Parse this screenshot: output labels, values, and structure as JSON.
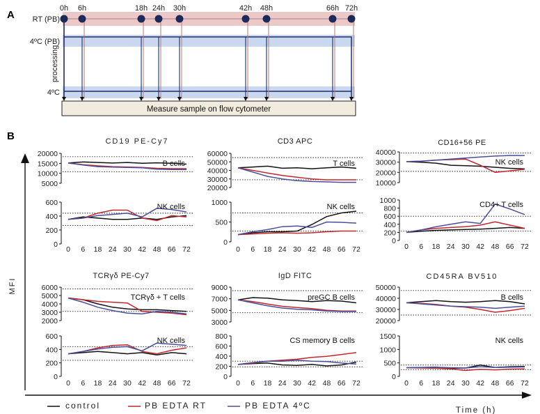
{
  "panel_labels": {
    "a": "A",
    "b": "B"
  },
  "timeline": {
    "tracks": [
      {
        "label": "RT (PB)",
        "fill": "#ecc9c9"
      },
      {
        "label": "4ºC (PB)",
        "fill": "#c9d8ee"
      },
      {
        "label": "4ºC",
        "fill": "#c9d8ee"
      }
    ],
    "processing_label": "processing",
    "time_points": [
      "0h",
      "6h",
      "18h",
      "24h",
      "30h",
      "42h",
      "48h",
      "66h",
      "72h"
    ],
    "measure_label": "Measure sample on flow cytometer",
    "dot_color": "#1c2a5a"
  },
  "axes_titles": {
    "y": "MFI",
    "x": "Time (h)"
  },
  "legend": [
    {
      "label": "control",
      "color": "#111111"
    },
    {
      "label": "PB EDTA RT",
      "color": "#c0282d"
    },
    {
      "label": "PB EDTA 4ºC",
      "color": "#4a4e9a"
    }
  ],
  "chart_data": [
    {
      "type": "line",
      "title": "CD19 PE-Cy7",
      "x": [
        0,
        6,
        18,
        24,
        30,
        42,
        48,
        66,
        72
      ],
      "top": {
        "yticks": [
          "20000",
          "15000",
          "10000",
          "5000"
        ],
        "ylim": [
          3000,
          21000
        ],
        "label": "B cells",
        "refs": [
          19000,
          10000
        ],
        "series": [
          {
            "name": "control",
            "color": "#111111",
            "values": [
              15200,
              15800,
              15500,
              15200,
              15500,
              15000,
              15300,
              15000,
              14500
            ]
          },
          {
            "name": "PB EDTA RT",
            "color": "#c0282d",
            "values": [
              15200,
              14200,
              13500,
              13000,
              12800,
              12500,
              12000,
              11800,
              11800
            ]
          },
          {
            "name": "PB EDTA 4ºC",
            "color": "#4a4e9a",
            "values": [
              15200,
              14000,
              13000,
              12700,
              12500,
              12300,
              11500,
              11300,
              11200
            ]
          }
        ]
      },
      "bottom": {
        "yticks": [
          "600",
          "400",
          "200",
          "0"
        ],
        "ylim": [
          0,
          680
        ],
        "label": "NK cells",
        "refs": [
          500,
          300
        ],
        "series": [
          {
            "name": "control",
            "color": "#111111",
            "values": [
              400,
              440,
              420,
              400,
              400,
              420,
              400,
              440,
              460
            ]
          },
          {
            "name": "PB EDTA RT",
            "color": "#c0282d",
            "values": [
              400,
              420,
              500,
              550,
              550,
              420,
              380,
              460,
              440
            ]
          },
          {
            "name": "PB EDTA 4ºC",
            "color": "#4a4e9a",
            "values": [
              400,
              420,
              460,
              480,
              500,
              440,
              580,
              560,
              520
            ]
          }
        ]
      }
    },
    {
      "type": "line",
      "title": "CD3 APC",
      "x": [
        0,
        6,
        18,
        24,
        30,
        42,
        48,
        66,
        72
      ],
      "top": {
        "yticks": [
          "60000",
          "50000",
          "40000",
          "30000",
          "20000"
        ],
        "ylim": [
          20000,
          60000
        ],
        "label": "T cells",
        "refs": [
          55000,
          29000
        ],
        "series": [
          {
            "name": "control",
            "color": "#111111",
            "values": [
              43000,
              44000,
              45000,
              42500,
              43000,
              42000,
              43000,
              44000,
              42500
            ]
          },
          {
            "name": "PB EDTA RT",
            "color": "#c0282d",
            "values": [
              43000,
              40000,
              37000,
              34000,
              32000,
              30000,
              29000,
              29000,
              29000
            ]
          },
          {
            "name": "PB EDTA 4ºC",
            "color": "#4a4e9a",
            "values": [
              43000,
              38000,
              33000,
              30000,
              28000,
              27000,
              26500,
              26000,
              26000
            ]
          }
        ]
      },
      "bottom": {
        "yticks": [
          "1000",
          "500",
          "0"
        ],
        "ylim": [
          0,
          1100
        ],
        "label": "NK cells",
        "refs": [
          800,
          300
        ],
        "series": [
          {
            "name": "control",
            "color": "#111111",
            "values": [
              200,
              250,
              280,
              280,
              300,
              480,
              700,
              800,
              850
            ]
          },
          {
            "name": "PB EDTA RT",
            "color": "#c0282d",
            "values": [
              200,
              220,
              240,
              250,
              240,
              250,
              280,
              300,
              300
            ]
          },
          {
            "name": "PB EDTA 4ºC",
            "color": "#4a4e9a",
            "values": [
              200,
              280,
              340,
              420,
              440,
              400,
              550,
              540,
              520
            ]
          }
        ]
      }
    },
    {
      "type": "line",
      "title": "CD16+56 PE",
      "x": [
        0,
        6,
        18,
        24,
        30,
        42,
        48,
        66,
        72
      ],
      "top": {
        "yticks": [
          "40000",
          "30000",
          "20000",
          "10000"
        ],
        "ylim": [
          10000,
          40000
        ],
        "label": "NK cells",
        "refs": [
          39000,
          21000
        ],
        "series": [
          {
            "name": "control",
            "color": "#111111",
            "values": [
              30500,
              30000,
              29000,
              27000,
              26500,
              26000,
              25000,
              24000,
              23500
            ]
          },
          {
            "name": "PB EDTA RT",
            "color": "#c0282d",
            "values": [
              30500,
              31000,
              32000,
              32500,
              33000,
              27000,
              20000,
              21500,
              23000
            ]
          },
          {
            "name": "PB EDTA 4ºC",
            "color": "#4a4e9a",
            "values": [
              30500,
              31000,
              32000,
              33000,
              34000,
              35000,
              36000,
              36500,
              36500
            ]
          }
        ]
      },
      "bottom": {
        "yticks": [
          "1000",
          "800",
          "600",
          "400",
          "200",
          "0"
        ],
        "ylim": [
          0,
          1000
        ],
        "label": "CD4+ T cells",
        "refs": [
          600,
          230
        ],
        "series": [
          {
            "name": "control",
            "color": "#111111",
            "values": [
              200,
              230,
              250,
              260,
              270,
              280,
              300,
              320,
              300
            ]
          },
          {
            "name": "PB EDTA RT",
            "color": "#c0282d",
            "values": [
              200,
              260,
              300,
              320,
              340,
              380,
              460,
              380,
              300
            ]
          },
          {
            "name": "PB EDTA 4ºC",
            "color": "#4a4e9a",
            "values": [
              200,
              260,
              340,
              400,
              460,
              420,
              900,
              780,
              640
            ]
          }
        ]
      }
    },
    {
      "type": "line",
      "title": "TCRγδ  PE-Cy7",
      "x": [
        0,
        6,
        18,
        24,
        30,
        42,
        48,
        66,
        72
      ],
      "top": {
        "yticks": [
          "6000",
          "5000",
          "4000",
          "3000",
          "2000"
        ],
        "ylim": [
          2000,
          6000
        ],
        "label": "TCRγδ + T cells",
        "refs": [
          5800,
          3100
        ],
        "series": [
          {
            "name": "control",
            "color": "#111111",
            "values": [
              4700,
              4500,
              4000,
              3600,
              3400,
              3300,
              3300,
              3200,
              3100
            ]
          },
          {
            "name": "PB EDTA RT",
            "color": "#c0282d",
            "values": [
              4700,
              4500,
              4300,
              4200,
              4100,
              3100,
              3000,
              2900,
              2700
            ]
          },
          {
            "name": "PB EDTA 4ºC",
            "color": "#4a4e9a",
            "values": [
              4700,
              4200,
              3600,
              3200,
              2900,
              2800,
              3100,
              3000,
              2800
            ]
          }
        ]
      },
      "bottom": {
        "yticks": [
          "600",
          "400",
          "200",
          "0"
        ],
        "ylim": [
          0,
          680
        ],
        "label": "NK cells",
        "refs": [
          500,
          270
        ],
        "series": [
          {
            "name": "control",
            "color": "#111111",
            "values": [
              380,
              400,
              420,
              400,
              380,
              400,
              360,
              400,
              380
            ]
          },
          {
            "name": "PB EDTA RT",
            "color": "#c0282d",
            "values": [
              380,
              420,
              480,
              520,
              530,
              420,
              380,
              440,
              480
            ]
          },
          {
            "name": "PB EDTA 4ºC",
            "color": "#4a4e9a",
            "values": [
              380,
              420,
              460,
              490,
              500,
              430,
              560,
              540,
              520
            ]
          }
        ]
      }
    },
    {
      "type": "line",
      "title": "IgD FITC",
      "x": [
        0,
        6,
        18,
        24,
        30,
        42,
        48,
        66,
        72
      ],
      "top": {
        "yticks": [
          "9000",
          "7000",
          "5000",
          "3000"
        ],
        "ylim": [
          3000,
          9000
        ],
        "label": "preGC B cells",
        "refs": [
          8400,
          4600
        ],
        "series": [
          {
            "name": "control",
            "color": "#111111",
            "values": [
              6800,
              7200,
              7100,
              6800,
              6700,
              6500,
              6700,
              6600,
              6300
            ]
          },
          {
            "name": "PB EDTA RT",
            "color": "#c0282d",
            "values": [
              6800,
              6500,
              6100,
              5700,
              5500,
              5300,
              5000,
              4900,
              4900
            ]
          },
          {
            "name": "PB EDTA 4ºC",
            "color": "#4a4e9a",
            "values": [
              6800,
              6300,
              5800,
              5400,
              5200,
              5100,
              4900,
              4800,
              4800
            ]
          }
        ]
      },
      "bottom": {
        "yticks": [
          "800",
          "600",
          "400",
          "200",
          "0"
        ],
        "ylim": [
          0,
          850
        ],
        "label": "CS memory  B cells",
        "refs": [
          320,
          200
        ],
        "series": [
          {
            "name": "control",
            "color": "#111111",
            "values": [
              250,
              270,
              280,
              240,
              230,
              250,
              220,
              240,
              300
            ]
          },
          {
            "name": "PB EDTA RT",
            "color": "#c0282d",
            "values": [
              250,
              280,
              320,
              340,
              360,
              400,
              420,
              460,
              500
            ]
          },
          {
            "name": "PB EDTA 4ºC",
            "color": "#4a4e9a",
            "values": [
              250,
              290,
              320,
              320,
              340,
              320,
              310,
              280,
              260
            ]
          }
        ]
      }
    },
    {
      "type": "line",
      "title": "CD45RA BV510",
      "x": [
        0,
        6,
        18,
        24,
        30,
        42,
        48,
        66,
        72
      ],
      "top": {
        "yticks": [
          "50000",
          "40000",
          "30000",
          "20000"
        ],
        "ylim": [
          20000,
          50000
        ],
        "label": "B cells",
        "refs": [
          47000,
          25000
        ],
        "series": [
          {
            "name": "control",
            "color": "#111111",
            "values": [
              36000,
              37000,
              38000,
              37000,
              36500,
              37000,
              38000,
              37000,
              35000
            ]
          },
          {
            "name": "PB EDTA RT",
            "color": "#c0282d",
            "values": [
              36000,
              35500,
              34500,
              33000,
              32000,
              30000,
              27500,
              29000,
              31000
            ]
          },
          {
            "name": "PB EDTA 4ºC",
            "color": "#4a4e9a",
            "values": [
              36000,
              35000,
              34000,
              33000,
              32500,
              32000,
              31000,
              32000,
              33000
            ]
          }
        ]
      },
      "bottom": {
        "yticks": [
          "1500",
          "1000",
          "500",
          "0"
        ],
        "ylim": [
          0,
          1500
        ],
        "label": "NK cells",
        "refs": [
          420,
          250
        ],
        "series": [
          {
            "name": "control",
            "color": "#111111",
            "values": [
              320,
              330,
              340,
              300,
              310,
              420,
              330,
              360,
              370
            ]
          },
          {
            "name": "PB EDTA RT",
            "color": "#c0282d",
            "values": [
              320,
              310,
              300,
              280,
              220,
              260,
              240,
              270,
              280
            ]
          },
          {
            "name": "PB EDTA 4ºC",
            "color": "#4a4e9a",
            "values": [
              320,
              330,
              340,
              320,
              310,
              360,
              330,
              340,
              350
            ]
          }
        ]
      }
    }
  ]
}
